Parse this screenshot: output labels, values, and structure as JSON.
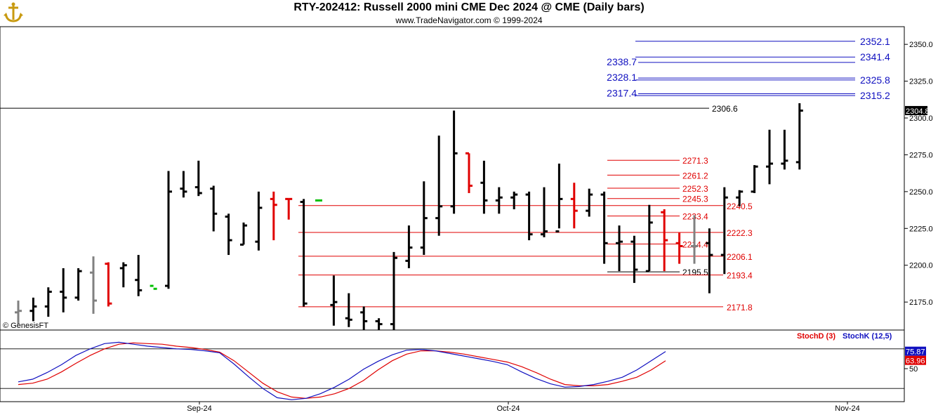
{
  "header": {
    "title": "RTY-202412:  Russell 2000 mini CME Dec 2024 @ CME  (Daily bars)",
    "subtitle": "www.TradeNavigator.com © 1999-2024"
  },
  "watermark": "© GenesisFT",
  "icons": {
    "logo": "anchor-logo-icon"
  },
  "colors": {
    "up_bar": "#000000",
    "down_bar": "#e00000",
    "neutral_bar": "#808080",
    "signal_bar": "#00c000",
    "red_levels": "#e00000",
    "blue_levels": "#1010c0",
    "stoch_d": "#e00000",
    "stoch_k": "#1010c0"
  },
  "chart_data": [
    {
      "type": "ohlc",
      "ylim": [
        2156,
        2362
      ],
      "yticks": [
        "2175.0",
        "2200.0",
        "2225.0",
        "2250.0",
        "2275.0",
        "2300.0",
        "2325.0",
        "2350.0"
      ],
      "xticks": [
        "Sep-24",
        "Oct-24",
        "Nov-24"
      ],
      "last_price": "2304.8",
      "ohlc": [
        {
          "o": 2168,
          "h": 2176,
          "l": 2160,
          "c": 2169,
          "color": "gray"
        },
        {
          "o": 2169,
          "h": 2178,
          "l": 2162,
          "c": 2172,
          "color": "black"
        },
        {
          "o": 2172,
          "h": 2185,
          "l": 2165,
          "c": 2182,
          "color": "black"
        },
        {
          "o": 2182,
          "h": 2198,
          "l": 2168,
          "c": 2178,
          "color": "black"
        },
        {
          "o": 2178,
          "h": 2198,
          "l": 2176,
          "c": 2196,
          "color": "black"
        },
        {
          "o": 2195,
          "h": 2206,
          "l": 2167,
          "c": 2176,
          "color": "gray"
        },
        {
          "o": 2201,
          "h": 2202,
          "l": 2172,
          "c": 2174,
          "color": "red"
        },
        {
          "o": 2198,
          "h": 2202,
          "l": 2185,
          "c": 2200,
          "color": "black"
        },
        {
          "o": 2190,
          "h": 2207,
          "l": 2179,
          "c": 2183,
          "color": "black"
        },
        {
          "o": 2186,
          "h": 2186,
          "l": 2186,
          "c": 2184,
          "color": "green"
        },
        {
          "o": 2186,
          "h": 2264,
          "l": 2184,
          "c": 2250,
          "color": "black"
        },
        {
          "o": 2252,
          "h": 2264,
          "l": 2246,
          "c": 2250,
          "color": "black"
        },
        {
          "o": 2253,
          "h": 2271,
          "l": 2247,
          "c": 2249,
          "color": "black"
        },
        {
          "o": 2252,
          "h": 2254,
          "l": 2223,
          "c": 2235,
          "color": "black"
        },
        {
          "o": 2233,
          "h": 2235,
          "l": 2207,
          "c": 2217,
          "color": "black"
        },
        {
          "o": 2214,
          "h": 2229,
          "l": 2214,
          "c": 2227,
          "color": "black"
        },
        {
          "o": 2216,
          "h": 2250,
          "l": 2210,
          "c": 2239,
          "color": "black"
        },
        {
          "o": 2245,
          "h": 2250,
          "l": 2217,
          "c": 2241,
          "color": "red"
        },
        {
          "o": 2245,
          "h": 2245,
          "l": 2231,
          "c": 2245,
          "color": "red"
        },
        {
          "o": 2243,
          "h": 2245,
          "l": 2172,
          "c": 2174,
          "color": "black"
        },
        {
          "o": 2244,
          "h": 2244,
          "l": 2244,
          "c": 2244,
          "color": "green"
        },
        {
          "o": 2173,
          "h": 2193,
          "l": 2159,
          "c": 2175,
          "color": "black"
        },
        {
          "o": 2164,
          "h": 2181,
          "l": 2158,
          "c": 2163,
          "color": "black"
        },
        {
          "o": 2168,
          "h": 2172,
          "l": 2156,
          "c": 2162,
          "color": "black"
        },
        {
          "o": 2162,
          "h": 2164,
          "l": 2156,
          "c": 2160,
          "color": "black"
        },
        {
          "o": 2160,
          "h": 2209,
          "l": 2155,
          "c": 2205,
          "color": "black"
        },
        {
          "o": 2203,
          "h": 2227,
          "l": 2198,
          "c": 2212,
          "color": "black"
        },
        {
          "o": 2212,
          "h": 2257,
          "l": 2207,
          "c": 2232,
          "color": "black"
        },
        {
          "o": 2232,
          "h": 2288,
          "l": 2220,
          "c": 2240,
          "color": "black"
        },
        {
          "o": 2240,
          "h": 2305,
          "l": 2235,
          "c": 2276,
          "color": "black"
        },
        {
          "o": 2276,
          "h": 2276,
          "l": 2249,
          "c": 2254,
          "color": "red"
        },
        {
          "o": 2256,
          "h": 2271,
          "l": 2235,
          "c": 2244,
          "color": "black"
        },
        {
          "o": 2244,
          "h": 2253,
          "l": 2235,
          "c": 2246,
          "color": "black"
        },
        {
          "o": 2246,
          "h": 2250,
          "l": 2238,
          "c": 2248,
          "color": "black"
        },
        {
          "o": 2248,
          "h": 2250,
          "l": 2217,
          "c": 2221,
          "color": "black"
        },
        {
          "o": 2221,
          "h": 2253,
          "l": 2219,
          "c": 2223,
          "color": "black"
        },
        {
          "o": 2223,
          "h": 2269,
          "l": 2225,
          "c": 2245,
          "color": "black"
        },
        {
          "o": 2245,
          "h": 2256,
          "l": 2225,
          "c": 2237,
          "color": "red"
        },
        {
          "o": 2237,
          "h": 2252,
          "l": 2233,
          "c": 2248,
          "color": "black"
        },
        {
          "o": 2248,
          "h": 2250,
          "l": 2201,
          "c": 2215,
          "color": "black"
        },
        {
          "o": 2215,
          "h": 2227,
          "l": 2196,
          "c": 2216,
          "color": "black"
        },
        {
          "o": 2216,
          "h": 2220,
          "l": 2188,
          "c": 2197,
          "color": "black"
        },
        {
          "o": 2196,
          "h": 2241,
          "l": 2196,
          "c": 2229,
          "color": "black"
        },
        {
          "o": 2236,
          "h": 2238,
          "l": 2196,
          "c": 2217,
          "color": "red"
        },
        {
          "o": 2215,
          "h": 2222,
          "l": 2201,
          "c": 2213,
          "color": "red"
        },
        {
          "o": 2213,
          "h": 2234,
          "l": 2201,
          "c": 2213,
          "color": "gray"
        },
        {
          "o": 2215,
          "h": 2225,
          "l": 2181,
          "c": 2207,
          "color": "black"
        },
        {
          "o": 2207,
          "h": 2253,
          "l": 2194,
          "c": 2246,
          "color": "black"
        },
        {
          "o": 2246,
          "h": 2251,
          "l": 2240,
          "c": 2250,
          "color": "black"
        },
        {
          "o": 2250,
          "h": 2268,
          "l": 2249,
          "c": 2267,
          "color": "black"
        },
        {
          "o": 2267,
          "h": 2292,
          "l": 2255,
          "c": 2269,
          "color": "black"
        },
        {
          "o": 2269,
          "h": 2292,
          "l": 2265,
          "c": 2271,
          "color": "black"
        },
        {
          "o": 2270,
          "h": 2310,
          "l": 2265,
          "c": 2305,
          "color": "black"
        }
      ],
      "levels": [
        {
          "value": 2352.1,
          "label": "2352.1",
          "color": "blue",
          "side": "right"
        },
        {
          "value": 2341.4,
          "label": "2341.4",
          "color": "blue",
          "side": "right"
        },
        {
          "value": 2338.7,
          "label": "2338.7",
          "color": "blue",
          "side": "left"
        },
        {
          "value": 2328.1,
          "label": "2328.1",
          "color": "blue",
          "side": "left"
        },
        {
          "value": 2325.8,
          "label": "2325.8",
          "color": "blue",
          "side": "right"
        },
        {
          "value": 2317.4,
          "label": "2317.4",
          "color": "blue",
          "side": "left"
        },
        {
          "value": 2315.2,
          "label": "2315.2",
          "color": "blue",
          "side": "right"
        },
        {
          "value": 2306.6,
          "label": "2306.6",
          "color": "black",
          "side": "full"
        },
        {
          "value": 2271.3,
          "label": "2271.3",
          "color": "red",
          "side": "short"
        },
        {
          "value": 2261.2,
          "label": "2261.2",
          "color": "red",
          "side": "short"
        },
        {
          "value": 2252.3,
          "label": "2252.3",
          "color": "red",
          "side": "short"
        },
        {
          "value": 2245.3,
          "label": "2245.3",
          "color": "red",
          "side": "short"
        },
        {
          "value": 2240.5,
          "label": "2240.5",
          "color": "red",
          "side": "long"
        },
        {
          "value": 2233.4,
          "label": "2233.4",
          "color": "red",
          "side": "short"
        },
        {
          "value": 2222.3,
          "label": "2222.3",
          "color": "red",
          "side": "long"
        },
        {
          "value": 2214.4,
          "label": "2214.4",
          "color": "red",
          "side": "short"
        },
        {
          "value": 2206.1,
          "label": "2206.1",
          "color": "red",
          "side": "long"
        },
        {
          "value": 2195.5,
          "label": "2195.5",
          "color": "black",
          "side": "short"
        },
        {
          "value": 2193.4,
          "label": "2193.4",
          "color": "red",
          "side": "long"
        },
        {
          "value": 2171.8,
          "label": "2171.8",
          "color": "red",
          "side": "long"
        }
      ]
    },
    {
      "type": "line",
      "series": [
        {
          "name": "StochD (3)",
          "color": "red",
          "values": [
            26,
            28,
            34,
            45,
            58,
            70,
            80,
            87,
            89,
            88,
            87,
            84,
            82,
            79,
            75,
            62,
            45,
            28,
            15,
            7,
            5,
            7,
            12,
            20,
            32,
            48,
            62,
            72,
            77,
            77,
            75,
            72,
            68,
            64,
            60,
            53,
            44,
            34,
            26,
            24,
            24,
            26,
            31,
            37,
            48,
            62
          ]
        },
        {
          "name": "StochK (12,5)",
          "color": "blue",
          "values": [
            30,
            34,
            44,
            56,
            70,
            80,
            88,
            90,
            87,
            84,
            82,
            80,
            79,
            77,
            74,
            57,
            38,
            20,
            6,
            3,
            5,
            12,
            22,
            34,
            49,
            61,
            71,
            78,
            79,
            77,
            73,
            69,
            65,
            61,
            56,
            45,
            35,
            27,
            22,
            23,
            26,
            31,
            37,
            48,
            62,
            76
          ]
        }
      ],
      "ylim": [
        0,
        100
      ],
      "yticks": [
        "50"
      ],
      "current_values": [
        "75.87",
        "63.96"
      ]
    }
  ]
}
